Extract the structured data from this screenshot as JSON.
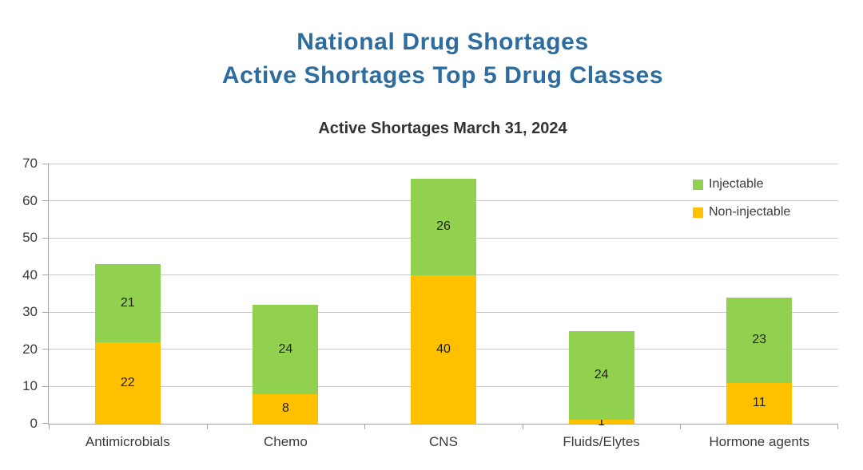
{
  "header": {
    "title_line1": "National Drug Shortages",
    "title_line2": "Active Shortages Top 5 Drug Classes",
    "title_color": "#2D6C9F"
  },
  "chart_data": {
    "type": "bar",
    "stacked": true,
    "title": "Active Shortages March 31, 2024",
    "categories": [
      "Antimicrobials",
      "Chemo",
      "CNS",
      "Fluids/Elytes",
      "Hormone agents"
    ],
    "series": [
      {
        "name": "Non-injectable",
        "color": "#FFC000",
        "values": [
          22,
          8,
          40,
          1,
          11
        ]
      },
      {
        "name": "Injectable",
        "color": "#92D050",
        "values": [
          21,
          24,
          26,
          24,
          23
        ]
      }
    ],
    "totals": [
      43,
      32,
      66,
      25,
      34
    ],
    "ylim": [
      0,
      70
    ],
    "ytick_step": 10,
    "grid": "horizontal",
    "legend_position": "top-right",
    "legend_order": [
      "Injectable",
      "Non-injectable"
    ],
    "axis_color": "#A6A6A6",
    "gridline_color": "#C9C9C9",
    "text_color": "#3B3B3B"
  }
}
